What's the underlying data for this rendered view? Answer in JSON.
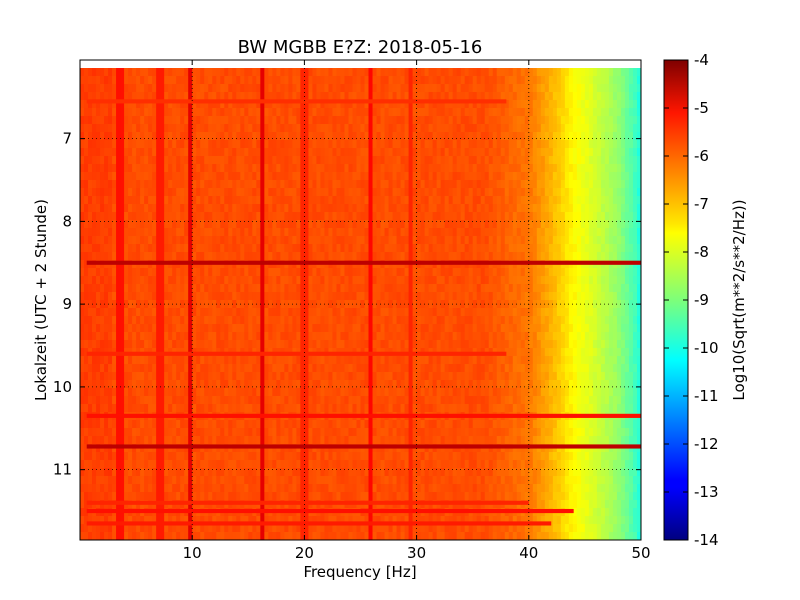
{
  "chart_data": {
    "type": "heatmap",
    "title": "BW MGBB E?Z: 2018-05-16",
    "xlabel": "Frequency [Hz]",
    "ylabel": "Lokalzeit (UTC + 2 Stunde)",
    "colorbar_label": "Log10(Sqrt(m**2/s**2/Hz))",
    "xlim": [
      0,
      50
    ],
    "ylim": [
      11.85,
      6.05
    ],
    "y_inverted": true,
    "x_ticks": [
      "10",
      "20",
      "30",
      "40",
      "50"
    ],
    "y_ticks": [
      "7",
      "8",
      "9",
      "10",
      "11"
    ],
    "colorbar_range": [
      -14,
      -4
    ],
    "colorbar_ticks": [
      "-4",
      "-5",
      "-6",
      "-7",
      "-8",
      "-9",
      "-10",
      "-11",
      "-12",
      "-13",
      "-14"
    ],
    "colormap": "jet",
    "grid": true,
    "base_level": -6.0,
    "rolloff": [
      {
        "freq": 36,
        "value": -6.0
      },
      {
        "freq": 40,
        "value": -6.4
      },
      {
        "freq": 42,
        "value": -7.0
      },
      {
        "freq": 44,
        "value": -7.7
      },
      {
        "freq": 46,
        "value": -8.2
      },
      {
        "freq": 48,
        "value": -8.8
      },
      {
        "freq": 49.5,
        "value": -9.6
      },
      {
        "freq": 50,
        "value": -10.0
      }
    ],
    "vertical_lines": [
      {
        "freq": 9.8,
        "value": -5.0
      },
      {
        "freq": 16.2,
        "value": -5.0
      },
      {
        "freq": 3.6,
        "value": -5.4
      },
      {
        "freq": 7.2,
        "value": -5.5
      },
      {
        "freq": 26.0,
        "value": -5.3
      },
      {
        "freq": 20.0,
        "value": -5.6
      },
      {
        "freq": 29.5,
        "value": -5.6
      }
    ],
    "horizontal_bands": [
      {
        "time": 8.5,
        "value": -4.6,
        "fmax": 50
      },
      {
        "time": 10.72,
        "value": -4.6,
        "fmax": 50
      },
      {
        "time": 10.35,
        "value": -5.4,
        "fmax": 50
      },
      {
        "time": 11.5,
        "value": -5.4,
        "fmax": 44
      },
      {
        "time": 11.65,
        "value": -5.5,
        "fmax": 42
      },
      {
        "time": 11.4,
        "value": -5.6,
        "fmax": 40
      },
      {
        "time": 9.6,
        "value": -5.6,
        "fmax": 38
      },
      {
        "time": 6.55,
        "value": -5.7,
        "fmax": 38
      }
    ]
  }
}
